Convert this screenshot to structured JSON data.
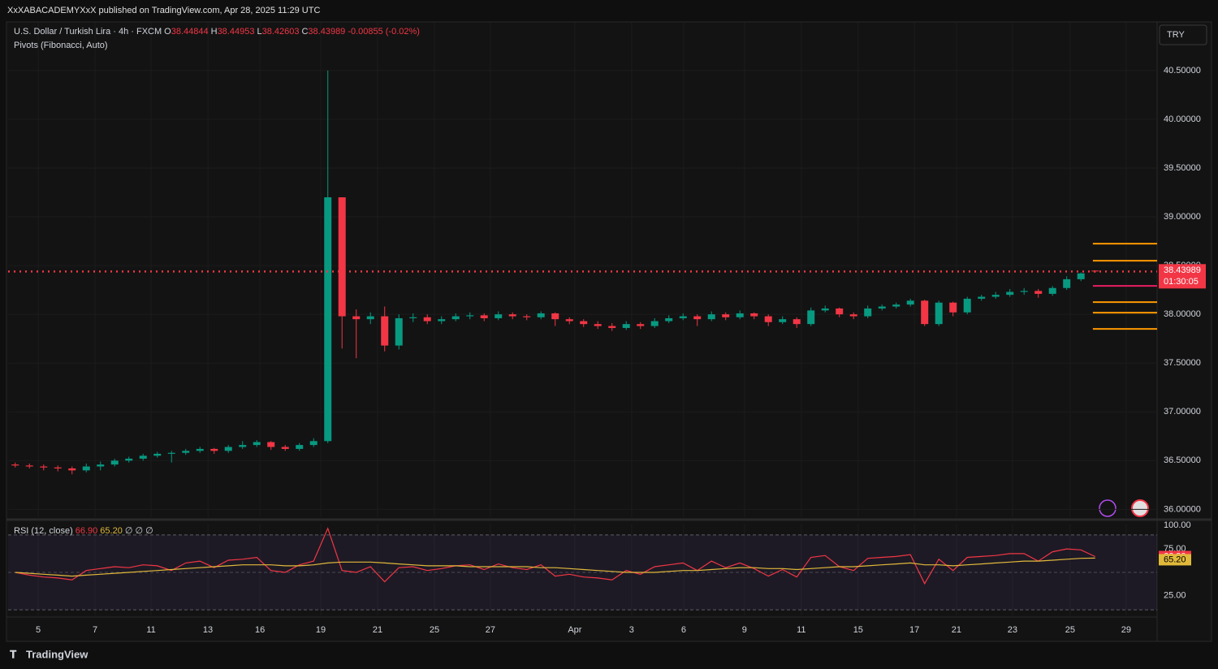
{
  "header": {
    "publisher": "XxXABACADEMYXxX published on TradingView.com, Apr 28, 2025 11:29 UTC",
    "currency": "TRY",
    "brand": "TradingView"
  },
  "chart_data": [
    {
      "type": "candlestick",
      "title": "U.S. Dollar / Turkish Lira · 4h · FXCM",
      "ohlc_labels": [
        "O",
        "H",
        "L",
        "C"
      ],
      "change": -0.00855,
      "change_pct": "(-0.02%)",
      "indicator": "Pivots (Fibonacci, Auto)",
      "up_color": "#089981",
      "down_color": "#f23645",
      "grid": true,
      "last_price_line": true,
      "countdown": "01:30:05",
      "x": [
        0.25,
        0.75,
        1.25,
        1.75,
        2.25,
        2.75,
        3.25,
        3.75,
        4.25,
        4.75,
        5.25,
        5.75,
        6.25,
        6.75,
        7.25,
        7.75,
        8.25,
        8.75,
        9.25,
        9.75,
        10.25,
        10.75,
        11.25,
        11.75,
        12.25,
        12.75,
        13.25,
        13.75,
        14.25,
        14.75,
        15.25,
        15.75,
        16.25,
        16.75,
        17.25,
        17.75,
        18.25,
        18.75,
        19.25,
        19.75,
        20.25,
        20.75,
        21.25,
        21.75,
        22.25,
        22.75,
        23.25,
        23.75,
        24.25,
        24.75,
        25.25,
        25.75,
        26.25,
        26.75,
        27.25,
        27.75,
        28.25,
        28.75,
        29.25,
        29.75,
        30.25,
        30.75,
        31.25,
        31.75,
        32.25,
        32.75,
        33.25,
        33.75,
        34.25,
        34.75,
        35.25,
        35.75,
        36.25,
        36.75,
        37.25,
        37.75,
        38.25
      ],
      "ohlc": [
        [
          36.46,
          36.48,
          36.43,
          36.45
        ],
        [
          36.45,
          36.47,
          36.42,
          36.44
        ],
        [
          36.44,
          36.46,
          36.4,
          36.43
        ],
        [
          36.43,
          36.45,
          36.39,
          36.42
        ],
        [
          36.42,
          36.44,
          36.36,
          36.4
        ],
        [
          36.4,
          36.47,
          36.38,
          36.44
        ],
        [
          36.44,
          36.49,
          36.4,
          36.46
        ],
        [
          36.46,
          36.52,
          36.44,
          36.5
        ],
        [
          36.5,
          36.54,
          36.48,
          36.52
        ],
        [
          36.52,
          36.57,
          36.5,
          36.55
        ],
        [
          36.55,
          36.59,
          36.53,
          36.57
        ],
        [
          36.57,
          36.6,
          36.48,
          36.58
        ],
        [
          36.58,
          36.62,
          36.56,
          36.6
        ],
        [
          36.6,
          36.64,
          36.58,
          36.62
        ],
        [
          36.62,
          36.63,
          36.57,
          36.6
        ],
        [
          36.6,
          36.66,
          36.58,
          36.64
        ],
        [
          36.64,
          36.7,
          36.62,
          36.66
        ],
        [
          36.66,
          36.71,
          36.64,
          36.69
        ],
        [
          36.69,
          36.7,
          36.61,
          36.64
        ],
        [
          36.64,
          36.66,
          36.6,
          36.62
        ],
        [
          36.62,
          36.68,
          36.6,
          36.66
        ],
        [
          36.66,
          36.73,
          36.64,
          36.7
        ],
        [
          36.7,
          40.5,
          36.68,
          39.2
        ],
        [
          39.2,
          39.2,
          37.65,
          37.98
        ],
        [
          37.98,
          38.05,
          37.55,
          37.95
        ],
        [
          37.95,
          38.02,
          37.9,
          37.98
        ],
        [
          37.98,
          38.08,
          37.62,
          37.68
        ],
        [
          37.68,
          38,
          37.64,
          37.96
        ],
        [
          37.96,
          38.01,
          37.92,
          37.97
        ],
        [
          37.97,
          38,
          37.9,
          37.93
        ],
        [
          37.93,
          37.98,
          37.9,
          37.95
        ],
        [
          37.95,
          38.01,
          37.93,
          37.98
        ],
        [
          37.98,
          38.02,
          37.95,
          37.99
        ],
        [
          37.99,
          38.01,
          37.93,
          37.96
        ],
        [
          37.96,
          38.03,
          37.94,
          38
        ],
        [
          38,
          38.02,
          37.95,
          37.98
        ],
        [
          37.98,
          38,
          37.94,
          37.97
        ],
        [
          37.97,
          38.03,
          37.95,
          38.01
        ],
        [
          38.01,
          38.02,
          37.88,
          37.95
        ],
        [
          37.95,
          37.97,
          37.9,
          37.93
        ],
        [
          37.93,
          37.95,
          37.87,
          37.9
        ],
        [
          37.9,
          37.93,
          37.85,
          37.88
        ],
        [
          37.88,
          37.91,
          37.83,
          37.86
        ],
        [
          37.86,
          37.93,
          37.84,
          37.9
        ],
        [
          37.9,
          37.92,
          37.85,
          37.88
        ],
        [
          37.88,
          37.96,
          37.86,
          37.93
        ],
        [
          37.93,
          37.99,
          37.91,
          37.96
        ],
        [
          37.96,
          38.01,
          37.94,
          37.98
        ],
        [
          37.98,
          38,
          37.88,
          37.95
        ],
        [
          37.95,
          38.03,
          37.93,
          38
        ],
        [
          38,
          38.02,
          37.94,
          37.97
        ],
        [
          37.97,
          38.04,
          37.95,
          38.01
        ],
        [
          38.01,
          38.02,
          37.95,
          37.98
        ],
        [
          37.98,
          38,
          37.88,
          37.92
        ],
        [
          37.92,
          37.98,
          37.9,
          37.95
        ],
        [
          37.95,
          37.97,
          37.86,
          37.9
        ],
        [
          37.9,
          38.07,
          37.88,
          38.04
        ],
        [
          38.04,
          38.09,
          38.02,
          38.06
        ],
        [
          38.06,
          38.07,
          37.97,
          38
        ],
        [
          38,
          38.02,
          37.95,
          37.98
        ],
        [
          37.98,
          38.09,
          37.96,
          38.06
        ],
        [
          38.06,
          38.1,
          38.04,
          38.08
        ],
        [
          38.08,
          38.12,
          38.06,
          38.1
        ],
        [
          38.1,
          38.16,
          38.08,
          38.14
        ],
        [
          38.14,
          38.15,
          37.88,
          37.9
        ],
        [
          37.9,
          38.14,
          37.88,
          38.12
        ],
        [
          38.12,
          38.13,
          37.98,
          38.02
        ],
        [
          38.02,
          38.18,
          38,
          38.16
        ],
        [
          38.16,
          38.2,
          38.14,
          38.18
        ],
        [
          38.18,
          38.23,
          38.16,
          38.2
        ],
        [
          38.2,
          38.26,
          38.18,
          38.23
        ],
        [
          38.23,
          38.27,
          38.2,
          38.24
        ],
        [
          38.24,
          38.26,
          38.17,
          38.21
        ],
        [
          38.21,
          38.29,
          38.19,
          38.27
        ],
        [
          38.27,
          38.39,
          38.25,
          38.36
        ],
        [
          38.36,
          38.43,
          38.34,
          38.42
        ],
        [
          38.44844,
          38.44953,
          38.42603,
          38.43989
        ]
      ],
      "xlim": [
        0,
        40.43
      ],
      "xticks": [
        {
          "value": 1.06,
          "label": "5"
        },
        {
          "value": 3.06,
          "label": "7"
        },
        {
          "value": 5.03,
          "label": "11"
        },
        {
          "value": 7.03,
          "label": "13"
        },
        {
          "value": 8.86,
          "label": "16"
        },
        {
          "value": 11.0,
          "label": "19"
        },
        {
          "value": 13.0,
          "label": "21"
        },
        {
          "value": 15.0,
          "label": "25"
        },
        {
          "value": 16.97,
          "label": "27"
        },
        {
          "value": 19.94,
          "label": "Apr"
        },
        {
          "value": 21.94,
          "label": "3"
        },
        {
          "value": 23.77,
          "label": "6"
        },
        {
          "value": 25.91,
          "label": "9"
        },
        {
          "value": 27.91,
          "label": "11"
        },
        {
          "value": 29.91,
          "label": "15"
        },
        {
          "value": 31.89,
          "label": "17"
        },
        {
          "value": 33.37,
          "label": "21"
        },
        {
          "value": 35.34,
          "label": "23"
        },
        {
          "value": 37.37,
          "label": "25"
        },
        {
          "value": 39.34,
          "label": "29"
        }
      ],
      "ylim": [
        35.92,
        40.99
      ],
      "yticks": [
        {
          "value": 36,
          "label": "36.00000"
        },
        {
          "value": 36.5,
          "label": "36.50000"
        },
        {
          "value": 37,
          "label": "37.00000"
        },
        {
          "value": 37.5,
          "label": "37.50000"
        },
        {
          "value": 38,
          "label": "38.00000"
        },
        {
          "value": 38.5,
          "label": "38.50000"
        },
        {
          "value": 39,
          "label": "39.00000"
        },
        {
          "value": 39.5,
          "label": "39.50000"
        },
        {
          "value": 40,
          "label": "40.00000"
        },
        {
          "value": 40.5,
          "label": "40.50000"
        }
      ],
      "pivots": {
        "x": [
          38.17,
          40.43
        ],
        "levels": [
          38.725,
          38.55,
          38.292,
          38.125,
          38.017,
          37.85
        ],
        "colors": [
          "#ff9800",
          "#ff9800",
          "#e91e63",
          "#ff9800",
          "#ff9800",
          "#ff9800"
        ]
      }
    },
    {
      "type": "line",
      "title": "RSI (12, close)",
      "null_labels": "∅ ∅ ∅",
      "x": [
        0.25,
        0.75,
        1.25,
        1.75,
        2.25,
        2.75,
        3.25,
        3.75,
        4.25,
        4.75,
        5.25,
        5.75,
        6.25,
        6.75,
        7.25,
        7.75,
        8.25,
        8.75,
        9.25,
        9.75,
        10.25,
        10.75,
        11.25,
        11.75,
        12.25,
        12.75,
        13.25,
        13.75,
        14.25,
        14.75,
        15.25,
        15.75,
        16.25,
        16.75,
        17.25,
        17.75,
        18.25,
        18.75,
        19.25,
        19.75,
        20.25,
        20.75,
        21.25,
        21.75,
        22.25,
        22.75,
        23.25,
        23.75,
        24.25,
        24.75,
        25.25,
        25.75,
        26.25,
        26.75,
        27.25,
        27.75,
        28.25,
        28.75,
        29.25,
        29.75,
        30.25,
        30.75,
        31.25,
        31.75,
        32.25,
        32.75,
        33.25,
        33.75,
        34.25,
        34.75,
        35.25,
        35.75,
        36.25,
        36.75,
        37.25,
        37.75,
        38.25
      ],
      "series": [
        {
          "color": "#f23645",
          "last_label": "66.90",
          "values": [
            50,
            47,
            45,
            44,
            42,
            52,
            54,
            56,
            55,
            58,
            57,
            52,
            60,
            62,
            55,
            63,
            64,
            66,
            52,
            50,
            58,
            62,
            97,
            52,
            50,
            56,
            40,
            55,
            56,
            52,
            54,
            57,
            58,
            53,
            59,
            55,
            53,
            58,
            46,
            48,
            45,
            44,
            42,
            52,
            48,
            56,
            58,
            60,
            52,
            62,
            55,
            60,
            54,
            46,
            53,
            45,
            66,
            68,
            56,
            52,
            65,
            66,
            67,
            69,
            38,
            64,
            52,
            66,
            67,
            68,
            70,
            70,
            62,
            72,
            75,
            74,
            66.9
          ]
        },
        {
          "color": "#e0b93b",
          "last_label": "65.20",
          "values": [
            50,
            49,
            48,
            47,
            46,
            47,
            48,
            49,
            50,
            51,
            52,
            53,
            54,
            55,
            56,
            57,
            58,
            58,
            58,
            57,
            57,
            58,
            60,
            61,
            61,
            61,
            60,
            59,
            58,
            57,
            57,
            57,
            56,
            56,
            56,
            56,
            56,
            55,
            55,
            54,
            53,
            52,
            51,
            50,
            50,
            50,
            51,
            52,
            52,
            53,
            54,
            55,
            55,
            54,
            54,
            53,
            54,
            55,
            56,
            56,
            57,
            58,
            59,
            60,
            58,
            58,
            57,
            58,
            59,
            60,
            61,
            62,
            62,
            63,
            64,
            65,
            65.2
          ]
        }
      ],
      "ylim": [
        4,
        102
      ],
      "yticks": [
        {
          "value": 100,
          "label": "100.00"
        },
        {
          "value": 75,
          "label": "75.00"
        },
        {
          "value": 25,
          "label": "25.00"
        }
      ],
      "bands": [
        90,
        10
      ],
      "midline": 50
    }
  ]
}
